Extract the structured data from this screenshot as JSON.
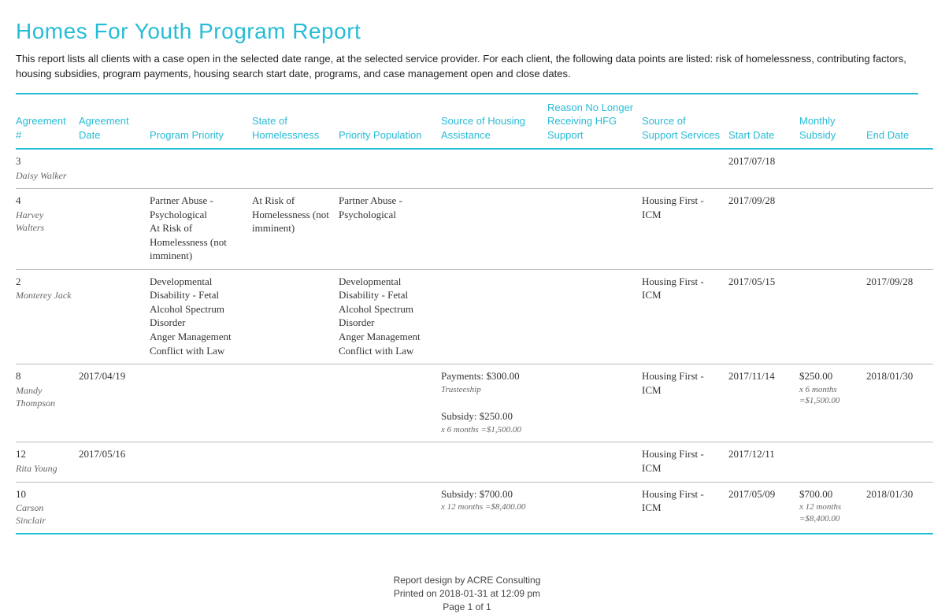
{
  "title": "Homes For Youth Program Report",
  "description": "This report lists all clients with a case open in the selected date range, at the selected service provider. For each client, the following data points are listed: risk of homelessness, contributing factors, housing subsidies, program payments, housing search start date, programs, and case management open and close dates.",
  "columns": [
    "Agreement #",
    "Agreement Date",
    "Program Priority",
    "State of Homelessness",
    "Priority Population",
    "Source of Housing Assistance",
    "Reason No Longer Receiving HFG Support",
    "Source of Support Services",
    "Start Date",
    "Monthly Subsidy",
    "End Date"
  ],
  "rows": [
    {
      "agreement_number": "3",
      "client_name": "Daisy Walker",
      "agreement_date": "",
      "program_priority": "",
      "state_of_homelessness": "",
      "priority_population": "",
      "source_housing": "",
      "source_housing_calc": "",
      "reason": "",
      "support_services": "",
      "start_date": "2017/07/18",
      "monthly_subsidy": "",
      "monthly_subsidy_calc": "",
      "end_date": ""
    },
    {
      "agreement_number": "4",
      "client_name": "Harvey Walters",
      "agreement_date": "",
      "program_priority": "Partner Abuse - Psychological\nAt Risk of Homelessness (not imminent)",
      "state_of_homelessness": "At Risk of Homelessness (not imminent)",
      "priority_population": "Partner Abuse - Psychological",
      "source_housing": "",
      "source_housing_calc": "",
      "reason": "",
      "support_services": "Housing First - ICM",
      "start_date": "2017/09/28",
      "monthly_subsidy": "",
      "monthly_subsidy_calc": "",
      "end_date": ""
    },
    {
      "agreement_number": "2",
      "client_name": "Monterey Jack",
      "agreement_date": "",
      "program_priority": "Developmental Disability - Fetal Alcohol Spectrum Disorder\nAnger Management\nConflict with Law",
      "state_of_homelessness": "",
      "priority_population": "Developmental Disability - Fetal Alcohol Spectrum Disorder\nAnger Management\nConflict with Law",
      "source_housing": "",
      "source_housing_calc": "",
      "reason": "",
      "support_services": "Housing First - ICM",
      "start_date": "2017/05/15",
      "monthly_subsidy": "",
      "monthly_subsidy_calc": "",
      "end_date": "2017/09/28"
    },
    {
      "agreement_number": "8",
      "client_name": "Mandy Thompson",
      "agreement_date": "2017/04/19",
      "program_priority": "",
      "state_of_homelessness": "",
      "priority_population": "",
      "source_housing": "Payments: $300.00\nTrusteeship\nSubsidy: $250.00",
      "source_housing_calc": "x 6 months =$1,500.00",
      "reason": "",
      "support_services": "Housing First - ICM",
      "start_date": "2017/11/14",
      "monthly_subsidy": "$250.00",
      "monthly_subsidy_calc": "x 6 months =$1,500.00",
      "end_date": "2018/01/30"
    },
    {
      "agreement_number": "12",
      "client_name": "Rita Young",
      "agreement_date": "2017/05/16",
      "program_priority": "",
      "state_of_homelessness": "",
      "priority_population": "",
      "source_housing": "",
      "source_housing_calc": "",
      "reason": "",
      "support_services": "Housing First - ICM",
      "start_date": "2017/12/11",
      "monthly_subsidy": "",
      "monthly_subsidy_calc": "",
      "end_date": ""
    },
    {
      "agreement_number": "10",
      "client_name": "Carson Sinclair",
      "agreement_date": "",
      "program_priority": "",
      "state_of_homelessness": "",
      "priority_population": "",
      "source_housing": "Subsidy: $700.00",
      "source_housing_calc": "x 12 months =$8,400.00",
      "reason": "",
      "support_services": "Housing First - ICM",
      "start_date": "2017/05/09",
      "monthly_subsidy": "$700.00",
      "monthly_subsidy_calc": "x 12 months =$8,400.00",
      "end_date": "2018/01/30"
    }
  ],
  "footer": {
    "design": "Report design by ACRE Consulting",
    "printed": "Printed on 2018-01-31 at 12:09 pm",
    "page": "Page 1 of 1"
  },
  "colors": {
    "accent": "#27bcd6",
    "text": "#222222",
    "muted": "#666666",
    "rowborder": "#bbbbbb"
  }
}
